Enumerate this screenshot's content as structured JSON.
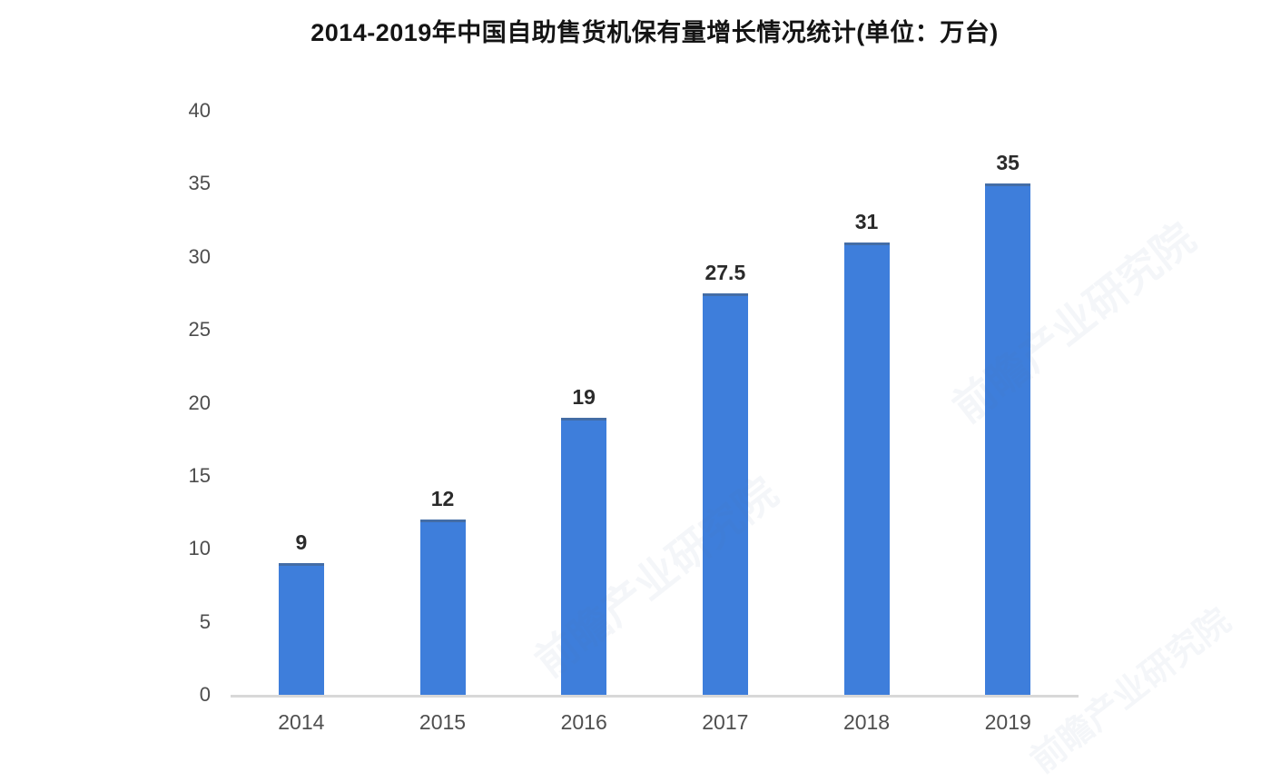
{
  "title": "2014-2019年中国自助售货机保有量增长情况统计(单位：万台)",
  "watermark": "前瞻产业研究院",
  "colors": {
    "bar": "#3e7edb",
    "axis_line": "#d8d8d8",
    "tick_text": "#4d4d4d",
    "data_label_text": "#2b2b2b",
    "title_text": "#141414"
  },
  "chart_data": {
    "type": "bar",
    "title": "2014-2019年中国自助售货机保有量增长情况统计(单位：万台)",
    "categories": [
      "2014",
      "2015",
      "2016",
      "2017",
      "2018",
      "2019"
    ],
    "values": [
      9,
      12,
      19,
      27.5,
      31,
      35
    ],
    "xlabel": "",
    "ylabel": "",
    "unit": "万台",
    "ylim": [
      0,
      40
    ],
    "yticks": [
      0,
      5,
      10,
      15,
      20,
      25,
      30,
      35,
      40
    ],
    "grid": false,
    "legend": "none",
    "data_labels": true
  }
}
